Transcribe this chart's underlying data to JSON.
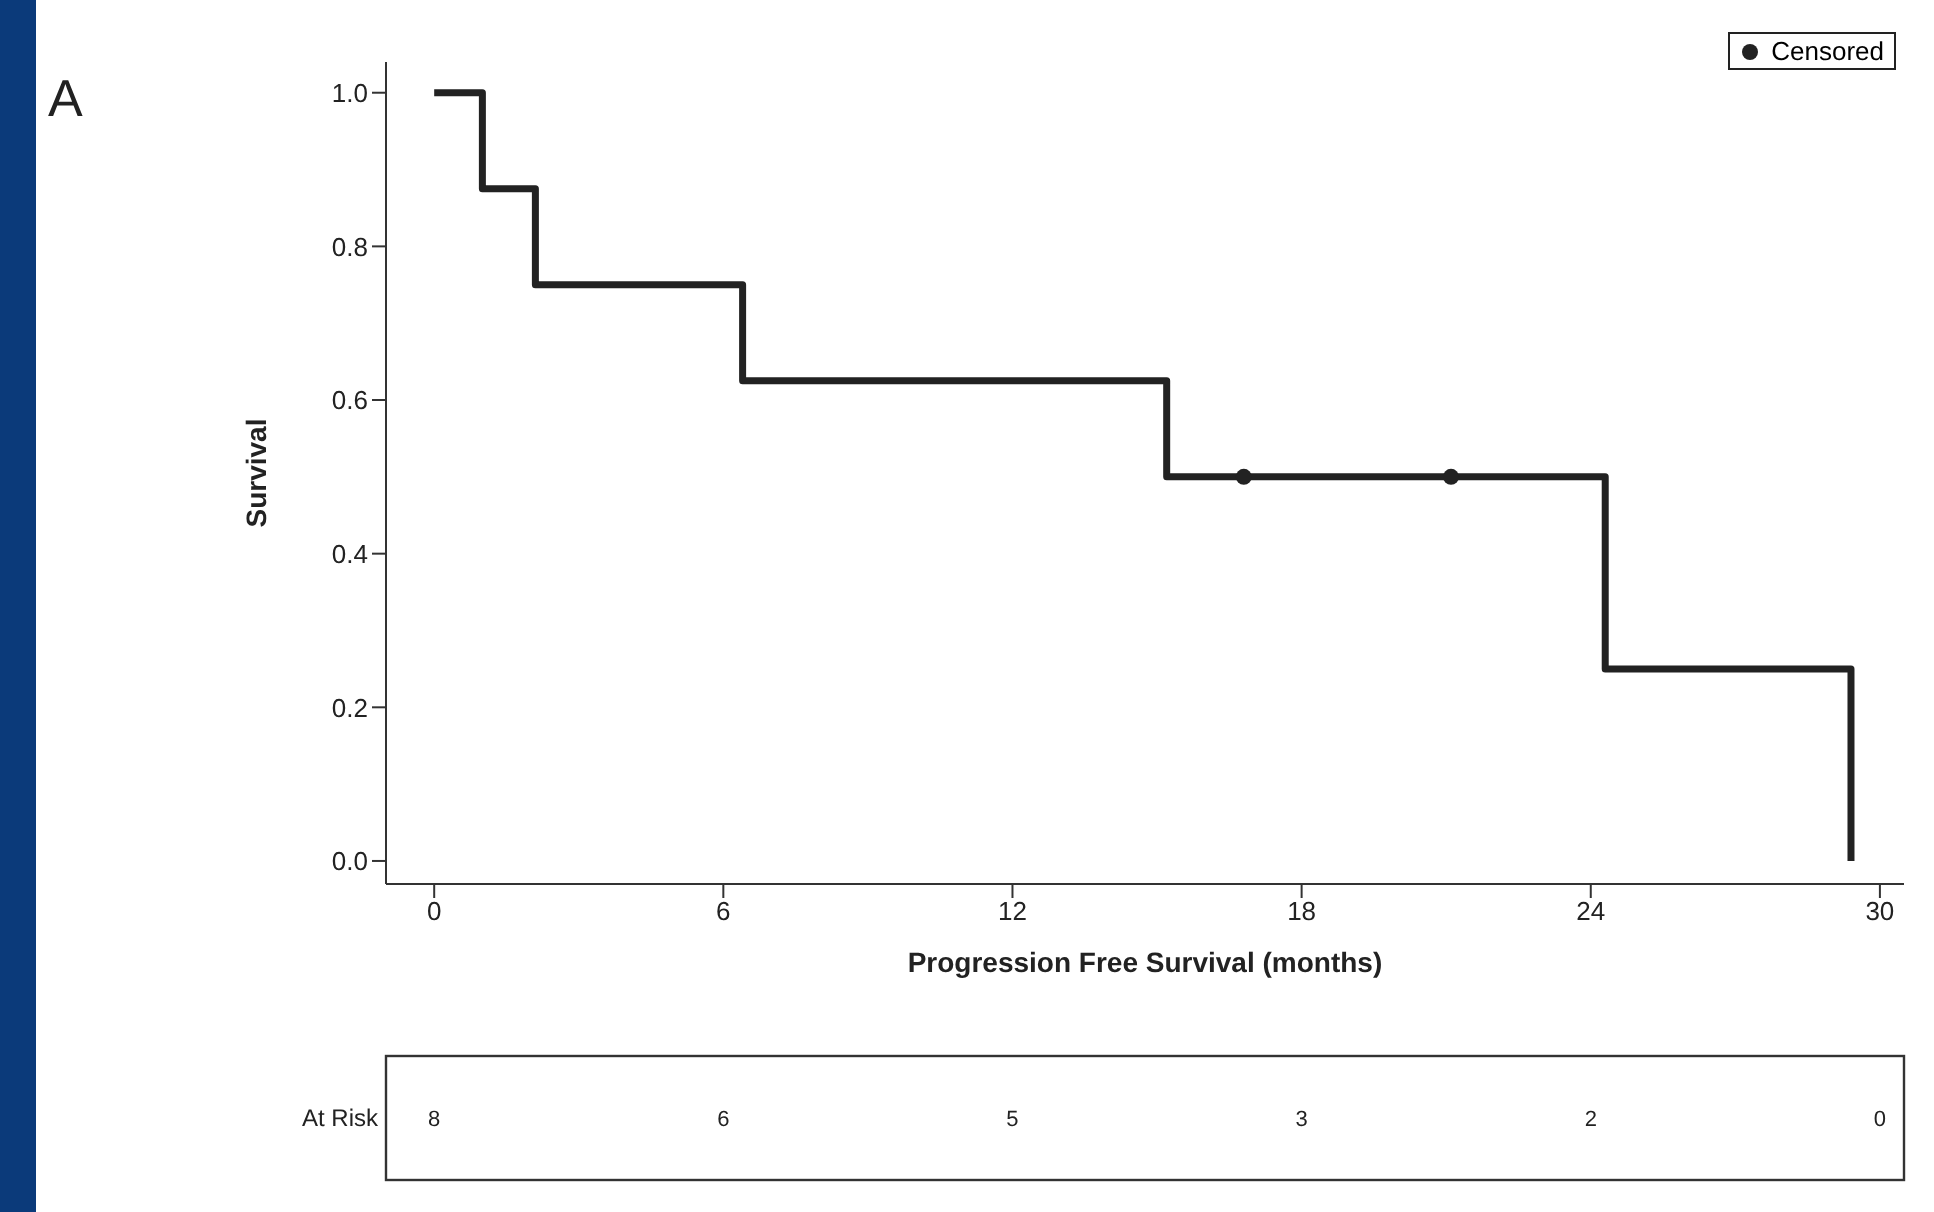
{
  "chart_data": [
    {
      "type": "step",
      "xlabel": "Progression Free Survival (months)",
      "ylabel": "Survival",
      "annotations": [
        "A"
      ],
      "series": [
        {
          "color": "#222222",
          "x": [
            0,
            1.0,
            2.1,
            6.4,
            15.2,
            24.3,
            29.4
          ],
          "values": [
            1.0,
            0.875,
            0.75,
            0.625,
            0.5,
            0.25,
            0.0
          ]
        },
        {
          "type": "scatter",
          "name": "Censored",
          "color": "#222222",
          "x": [
            16.8,
            21.1
          ],
          "values": [
            0.5,
            0.5
          ],
          "marker": "circle"
        }
      ],
      "xlim": [
        -1,
        30.5
      ],
      "xticks": [
        0,
        6,
        12,
        18,
        24,
        30
      ],
      "ylim": [
        -0.03,
        1.04
      ],
      "yticks": [
        {
          "value": 0,
          "label": "0.0"
        },
        0.2,
        0.4,
        0.6,
        0.8,
        {
          "value": 1,
          "label": "1.0"
        }
      ],
      "grid": false,
      "legend": "top right",
      "line_style": "solid"
    },
    {
      "type": "other",
      "ylabel": "At Risk",
      "categories": [
        "8",
        "6",
        "5",
        "3",
        "2",
        "0"
      ]
    }
  ]
}
